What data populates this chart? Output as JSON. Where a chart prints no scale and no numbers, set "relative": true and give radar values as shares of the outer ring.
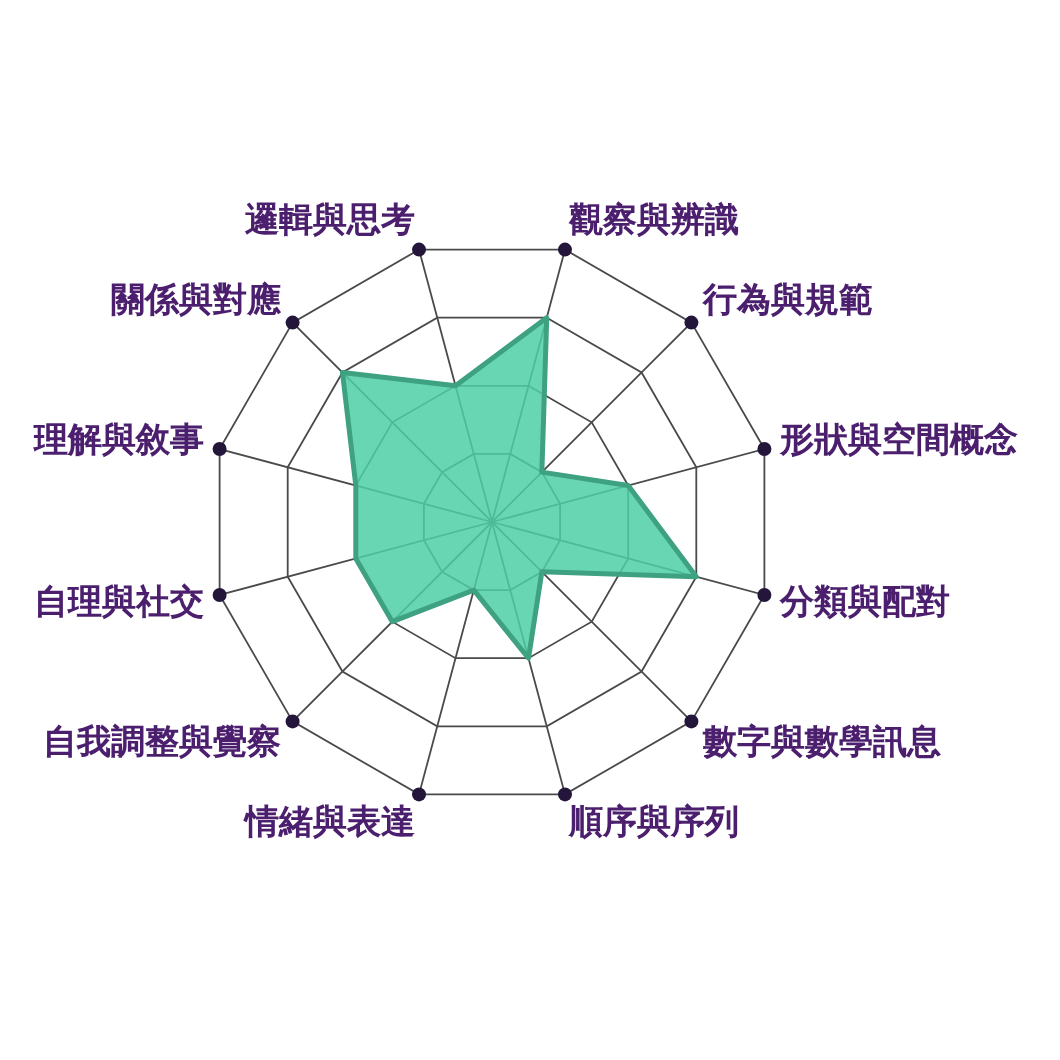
{
  "chart_data": {
    "type": "radar",
    "relative": true,
    "grid": true,
    "categories": [
      "觀察與辨識",
      "行為與規範",
      "形狀與空間概念",
      "分類與配對",
      "數字與數學訊息",
      "順序與序列",
      "情緒與表達",
      "自我調整與覺察",
      "自理與社交",
      "理解與敘事",
      "關係與對應",
      "邏輯與思考"
    ],
    "series": [
      {
        "color": "#4fcfa6",
        "values": [
          0.75,
          0.25,
          0.5,
          0.75,
          0.25,
          0.5,
          0.25,
          0.5,
          0.5,
          0.5,
          0.75,
          0.5
        ]
      }
    ]
  }
}
